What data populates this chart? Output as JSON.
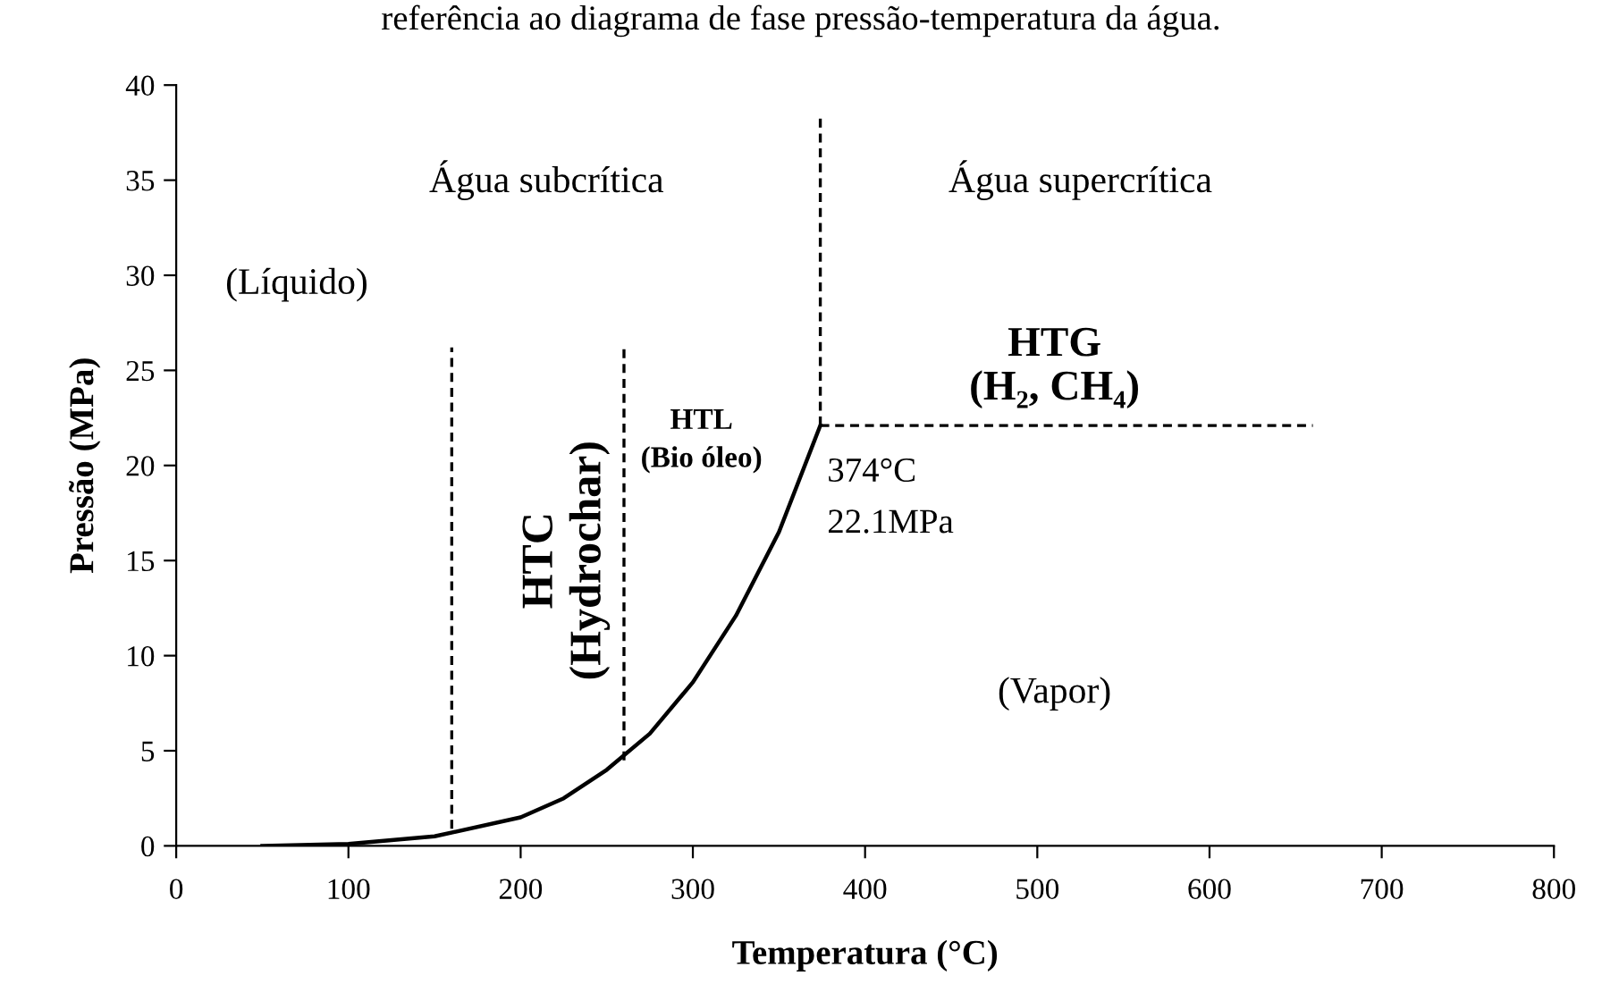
{
  "chart_data": {
    "type": "line",
    "xlabel": "Temperatura (°C)",
    "ylabel": "Pressão (MPa)",
    "xlim": [
      0,
      800
    ],
    "xticks": [
      0,
      100,
      200,
      300,
      400,
      500,
      600,
      700,
      800
    ],
    "ylim": [
      0,
      40
    ],
    "yticks": [
      0,
      5,
      10,
      15,
      20,
      25,
      30,
      35,
      40
    ],
    "grid": false,
    "legend": false,
    "marker": "none",
    "series": [
      {
        "color": "#000000",
        "line_style": "solid",
        "x": [
          50,
          100,
          150,
          200,
          225,
          250,
          275,
          300,
          325,
          350,
          374
        ],
        "values": [
          0,
          0.1,
          0.5,
          1.5,
          2.5,
          4.0,
          5.9,
          8.6,
          12.1,
          16.5,
          22.1
        ]
      },
      {
        "color": "#000000",
        "line_style": "dashed",
        "x": [
          160,
          160
        ],
        "values": [
          0.9,
          26.2
        ]
      },
      {
        "color": "#000000",
        "line_style": "dashed",
        "x": [
          260,
          260
        ],
        "values": [
          4.5,
          26.2
        ]
      },
      {
        "color": "#000000",
        "line_style": "dashed",
        "x": [
          374,
          374
        ],
        "values": [
          22.1,
          38.4
        ]
      },
      {
        "color": "#000000",
        "line_style": "dashed",
        "x": [
          374,
          660
        ],
        "values": [
          22.1,
          22.1
        ]
      }
    ],
    "annotations": [
      "referência ao diagrama de fase pressão-temperatura da água.",
      "Água subcrítica",
      "Água supercrítica",
      "(Líquido)",
      "HTC",
      "(Hydrochar)",
      "HTL",
      "(Bio óleo)",
      "HTG",
      "(H₂, CH₄)",
      "374°C",
      "22.1MPa",
      "(Vapor)"
    ]
  }
}
